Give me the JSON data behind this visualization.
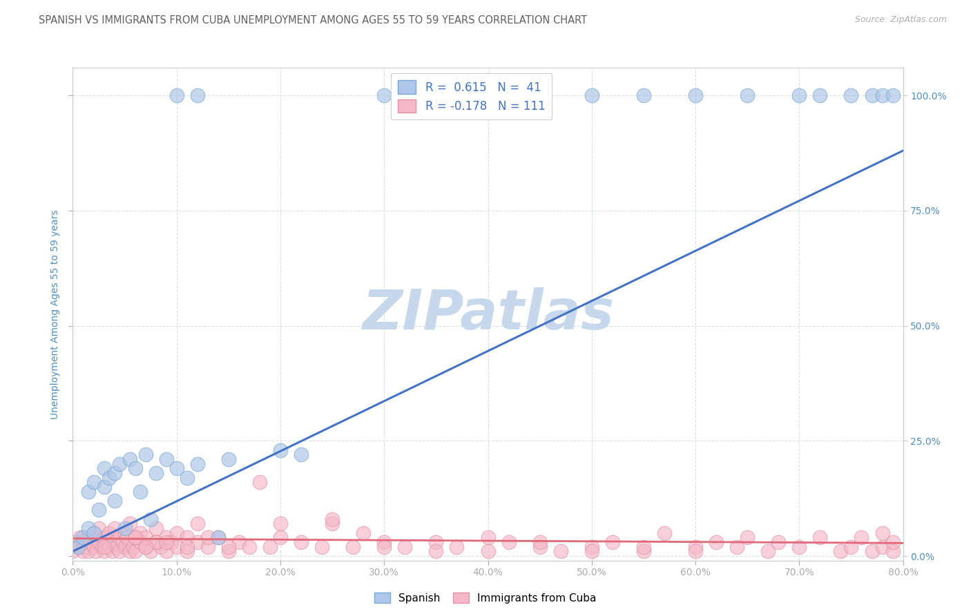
{
  "title": "SPANISH VS IMMIGRANTS FROM CUBA UNEMPLOYMENT AMONG AGES 55 TO 59 YEARS CORRELATION CHART",
  "source": "Source: ZipAtlas.com",
  "ylabel": "Unemployment Among Ages 55 to 59 years",
  "xlim": [
    0.0,
    0.8
  ],
  "ylim": [
    -0.01,
    1.06
  ],
  "legend_R_spanish": "R =  0.615",
  "legend_N_spanish": "N =  41",
  "legend_R_cuba": "R = -0.178",
  "legend_N_cuba": "N = 111",
  "blue_fill": "#aec6e8",
  "blue_edge": "#7aaad0",
  "pink_fill": "#f4b8c8",
  "pink_edge": "#e090a8",
  "blue_line_color": "#4472c4",
  "pink_line_color": "#e06878",
  "title_color": "#606060",
  "axis_label_color": "#5090c0",
  "tick_color": "#5090c0",
  "watermark_color": "#c8d8ec",
  "grid_color": "#d8e0e8",
  "spanish_x": [
    0.005,
    0.01,
    0.015,
    0.015,
    0.02,
    0.02,
    0.025,
    0.03,
    0.03,
    0.035,
    0.04,
    0.04,
    0.045,
    0.05,
    0.055,
    0.06,
    0.065,
    0.07,
    0.075,
    0.08,
    0.09,
    0.1,
    0.11,
    0.12,
    0.14,
    0.15,
    0.2,
    0.22,
    0.1,
    0.12,
    0.3,
    0.5,
    0.55,
    0.6,
    0.65,
    0.7,
    0.72,
    0.75,
    0.77,
    0.78,
    0.79
  ],
  "spanish_y": [
    0.02,
    0.04,
    0.06,
    0.14,
    0.05,
    0.16,
    0.1,
    0.15,
    0.19,
    0.17,
    0.12,
    0.18,
    0.2,
    0.06,
    0.21,
    0.19,
    0.14,
    0.22,
    0.08,
    0.18,
    0.21,
    0.19,
    0.17,
    0.2,
    0.04,
    0.21,
    0.23,
    0.22,
    1.0,
    1.0,
    1.0,
    1.0,
    1.0,
    1.0,
    1.0,
    1.0,
    1.0,
    1.0,
    1.0,
    1.0,
    1.0
  ],
  "cuba_x": [
    0.0,
    0.003,
    0.005,
    0.007,
    0.01,
    0.01,
    0.012,
    0.015,
    0.015,
    0.018,
    0.02,
    0.02,
    0.022,
    0.025,
    0.025,
    0.028,
    0.03,
    0.03,
    0.032,
    0.035,
    0.035,
    0.038,
    0.04,
    0.04,
    0.042,
    0.045,
    0.045,
    0.048,
    0.05,
    0.05,
    0.052,
    0.055,
    0.055,
    0.058,
    0.06,
    0.06,
    0.065,
    0.065,
    0.07,
    0.07,
    0.075,
    0.08,
    0.08,
    0.085,
    0.09,
    0.09,
    0.095,
    0.1,
    0.1,
    0.11,
    0.11,
    0.12,
    0.12,
    0.13,
    0.14,
    0.15,
    0.16,
    0.17,
    0.18,
    0.19,
    0.2,
    0.22,
    0.24,
    0.25,
    0.27,
    0.28,
    0.3,
    0.32,
    0.35,
    0.37,
    0.4,
    0.42,
    0.45,
    0.47,
    0.5,
    0.52,
    0.55,
    0.57,
    0.6,
    0.62,
    0.64,
    0.65,
    0.67,
    0.68,
    0.7,
    0.72,
    0.74,
    0.75,
    0.76,
    0.77,
    0.78,
    0.78,
    0.79,
    0.79,
    0.5,
    0.3,
    0.4,
    0.2,
    0.6,
    0.55,
    0.45,
    0.35,
    0.25,
    0.15,
    0.08,
    0.06,
    0.07,
    0.09,
    0.11,
    0.13,
    0.03
  ],
  "cuba_y": [
    0.01,
    0.03,
    0.02,
    0.04,
    0.01,
    0.03,
    0.02,
    0.04,
    0.01,
    0.03,
    0.02,
    0.05,
    0.01,
    0.03,
    0.06,
    0.02,
    0.04,
    0.01,
    0.03,
    0.05,
    0.02,
    0.01,
    0.03,
    0.06,
    0.02,
    0.04,
    0.01,
    0.03,
    0.05,
    0.02,
    0.04,
    0.01,
    0.07,
    0.02,
    0.04,
    0.01,
    0.03,
    0.05,
    0.02,
    0.04,
    0.01,
    0.03,
    0.06,
    0.02,
    0.04,
    0.01,
    0.03,
    0.05,
    0.02,
    0.04,
    0.01,
    0.03,
    0.07,
    0.02,
    0.04,
    0.01,
    0.03,
    0.02,
    0.16,
    0.02,
    0.04,
    0.03,
    0.02,
    0.07,
    0.02,
    0.05,
    0.03,
    0.02,
    0.03,
    0.02,
    0.04,
    0.03,
    0.02,
    0.01,
    0.02,
    0.03,
    0.01,
    0.05,
    0.02,
    0.03,
    0.02,
    0.04,
    0.01,
    0.03,
    0.02,
    0.04,
    0.01,
    0.02,
    0.04,
    0.01,
    0.02,
    0.05,
    0.01,
    0.03,
    0.01,
    0.02,
    0.01,
    0.07,
    0.01,
    0.02,
    0.03,
    0.01,
    0.08,
    0.02,
    0.03,
    0.04,
    0.02,
    0.03,
    0.02,
    0.04,
    0.02
  ],
  "spanish_line_x": [
    0.0,
    0.8
  ],
  "spanish_line_y": [
    0.01,
    0.88
  ],
  "cuba_line_x": [
    0.0,
    0.8
  ],
  "cuba_line_y": [
    0.038,
    0.028
  ]
}
